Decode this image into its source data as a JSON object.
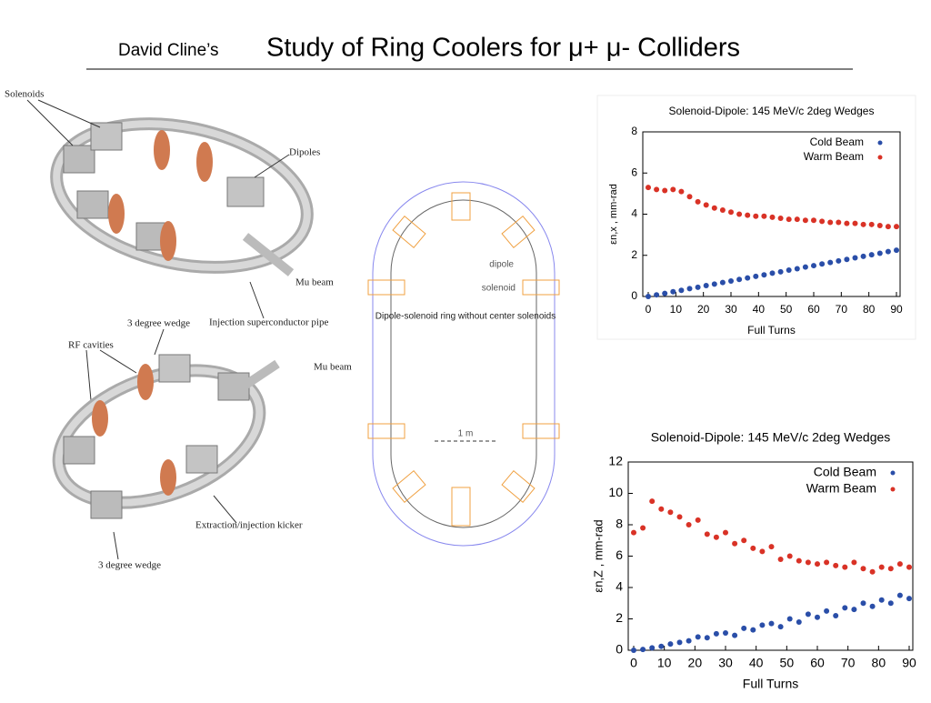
{
  "header": {
    "author": "David Cline’s",
    "title": "Study of Ring Coolers for μ+ μ- Colliders"
  },
  "ring_top": {
    "labels": [
      "Solenoids",
      "Dipoles",
      "Mu beam",
      "Injection superconductor pipe"
    ]
  },
  "ring_bottom": {
    "labels": [
      "3 degree wedge",
      "RF cavities",
      "Mu beam",
      "Extraction/injection kicker",
      "3 degree wedge"
    ]
  },
  "layout_diagram": {
    "labels": [
      "dipole",
      "solenoid",
      "Dipole-solenoid ring without center solenoids",
      "1 m"
    ]
  },
  "chart_data": [
    {
      "type": "scatter",
      "title": "Solenoid-Dipole: 145 MeV/c 2deg Wedges",
      "xlabel": "Full Turns",
      "ylabel": "εn,x , mm-rad",
      "xlim": [
        0,
        90
      ],
      "xticks": [
        0,
        10,
        20,
        30,
        40,
        50,
        60,
        70,
        80,
        90
      ],
      "ylim": [
        0,
        8
      ],
      "yticks": [
        0,
        2,
        4,
        6,
        8
      ],
      "x": [
        0,
        3,
        6,
        9,
        12,
        15,
        18,
        21,
        24,
        27,
        30,
        33,
        36,
        39,
        42,
        45,
        48,
        51,
        54,
        57,
        60,
        63,
        66,
        69,
        72,
        75,
        78,
        81,
        84,
        87,
        90
      ],
      "series": [
        {
          "name": "Cold Beam",
          "color": "#2a4ea8",
          "values": [
            0,
            0.08,
            0.15,
            0.23,
            0.3,
            0.38,
            0.45,
            0.53,
            0.6,
            0.68,
            0.75,
            0.83,
            0.9,
            0.98,
            1.05,
            1.13,
            1.2,
            1.28,
            1.35,
            1.43,
            1.5,
            1.58,
            1.65,
            1.73,
            1.8,
            1.88,
            1.95,
            2.03,
            2.1,
            2.18,
            2.25
          ]
        },
        {
          "name": "Warm Beam",
          "color": "#d93226",
          "values": [
            5.3,
            5.2,
            5.15,
            5.2,
            5.1,
            4.85,
            4.6,
            4.45,
            4.3,
            4.2,
            4.1,
            4.0,
            3.95,
            3.9,
            3.9,
            3.85,
            3.8,
            3.75,
            3.75,
            3.7,
            3.7,
            3.65,
            3.6,
            3.6,
            3.55,
            3.55,
            3.5,
            3.5,
            3.45,
            3.4,
            3.4
          ]
        }
      ]
    },
    {
      "type": "scatter",
      "title": "Solenoid-Dipole: 145 MeV/c 2deg Wedges",
      "xlabel": "Full Turns",
      "ylabel": "εn,Z , mm-rad",
      "xlim": [
        0,
        90
      ],
      "xticks": [
        0,
        10,
        20,
        30,
        40,
        50,
        60,
        70,
        80,
        90
      ],
      "ylim": [
        0,
        12
      ],
      "yticks": [
        0,
        2,
        4,
        6,
        8,
        10,
        12
      ],
      "x": [
        0,
        3,
        6,
        9,
        12,
        15,
        18,
        21,
        24,
        27,
        30,
        33,
        36,
        39,
        42,
        45,
        48,
        51,
        54,
        57,
        60,
        63,
        66,
        69,
        72,
        75,
        78,
        81,
        84,
        87,
        90
      ],
      "series": [
        {
          "name": "Cold Beam",
          "color": "#2a4ea8",
          "values": [
            0,
            0.05,
            0.15,
            0.25,
            0.4,
            0.5,
            0.6,
            0.85,
            0.8,
            1.05,
            1.1,
            0.95,
            1.4,
            1.3,
            1.6,
            1.7,
            1.5,
            2.0,
            1.8,
            2.3,
            2.1,
            2.5,
            2.2,
            2.7,
            2.6,
            3.0,
            2.8,
            3.2,
            3.0,
            3.5,
            3.3
          ]
        },
        {
          "name": "Warm Beam",
          "color": "#d93226",
          "values": [
            7.5,
            7.8,
            9.5,
            9.0,
            8.8,
            8.5,
            8.0,
            8.3,
            7.4,
            7.2,
            7.5,
            6.8,
            7.0,
            6.5,
            6.3,
            6.6,
            5.8,
            6.0,
            5.7,
            5.6,
            5.5,
            5.6,
            5.4,
            5.3,
            5.6,
            5.2,
            5.0,
            5.3,
            5.2,
            5.5,
            5.3
          ]
        }
      ]
    }
  ]
}
